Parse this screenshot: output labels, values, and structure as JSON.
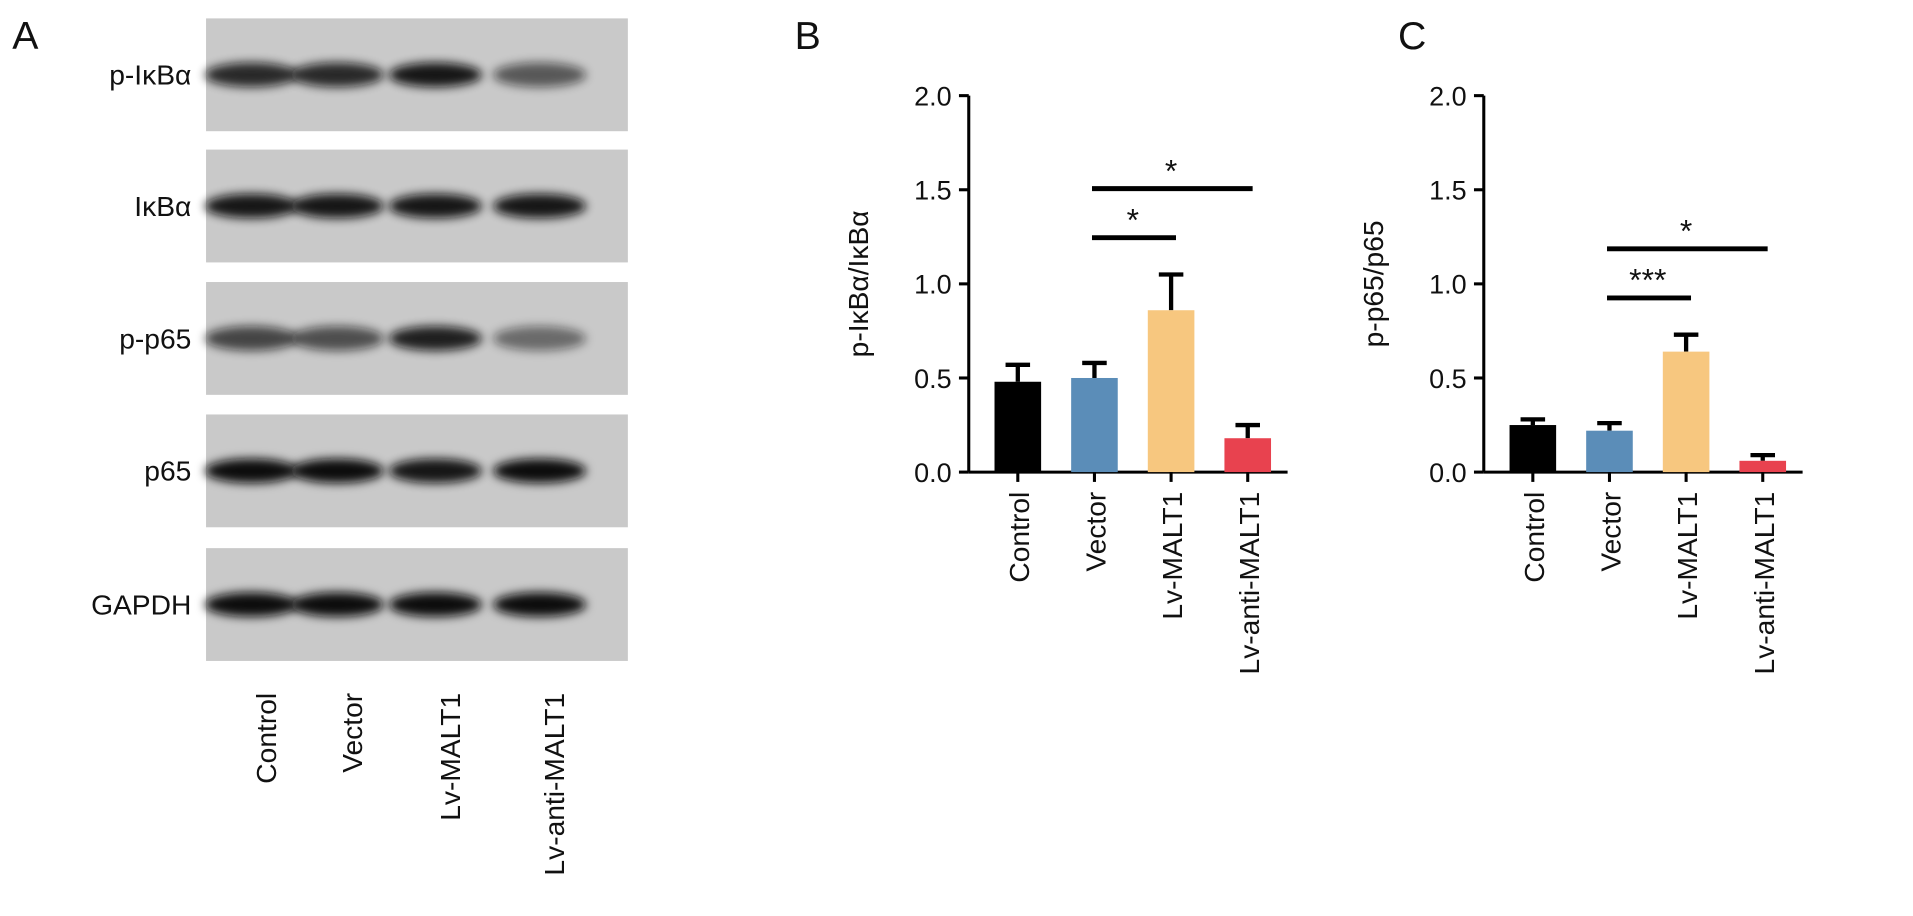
{
  "panels": [
    "A",
    "B",
    "C"
  ],
  "blot": {
    "rows": [
      "p-IκBα",
      "IκBα",
      "p-p65",
      "p65",
      "GAPDH"
    ],
    "lanes": [
      "Control",
      "Vector",
      "Lv-MALT1",
      "Lv-anti-MALT1"
    ]
  },
  "chart_data": [
    {
      "type": "bar",
      "ylabel": "p-IκBα/IκBα",
      "categories": [
        "Control",
        "Vector",
        "Lv-MALT1",
        "Lv-anti-MALT1"
      ],
      "values": [
        0.48,
        0.5,
        0.86,
        0.18
      ],
      "errors": [
        0.09,
        0.08,
        0.19,
        0.07
      ],
      "colors": [
        "#000000",
        "#5b8db8",
        "#f7c77f",
        "#e8424f"
      ],
      "ylim": [
        0,
        2
      ],
      "yticks": [
        {
          "value": 0,
          "label": "0.0"
        },
        0.5,
        {
          "value": 1,
          "label": "1.0"
        },
        1.5,
        {
          "value": 2,
          "label": "2.0"
        }
      ],
      "comparisons": [
        {
          "groups": [
            "Vector",
            "Lv-MALT1"
          ],
          "label": "*"
        },
        {
          "groups": [
            "Vector",
            "Lv-anti-MALT1"
          ],
          "label": "*"
        }
      ]
    },
    {
      "type": "bar",
      "ylabel": "p-p65/p65",
      "categories": [
        "Control",
        "Vector",
        "Lv-MALT1",
        "Lv-anti-MALT1"
      ],
      "values": [
        0.25,
        0.22,
        0.64,
        0.06
      ],
      "errors": [
        0.03,
        0.04,
        0.09,
        0.03
      ],
      "colors": [
        "#000000",
        "#5b8db8",
        "#f7c77f",
        "#e8424f"
      ],
      "ylim": [
        0,
        2
      ],
      "yticks": [
        {
          "value": 0,
          "label": "0.0"
        },
        0.5,
        {
          "value": 1,
          "label": "1.0"
        },
        1.5,
        {
          "value": 2,
          "label": "2.0"
        }
      ],
      "comparisons": [
        {
          "groups": [
            "Vector",
            "Lv-MALT1"
          ],
          "label": "***"
        },
        {
          "groups": [
            "Vector",
            "Lv-anti-MALT1"
          ],
          "label": "*"
        }
      ]
    }
  ]
}
